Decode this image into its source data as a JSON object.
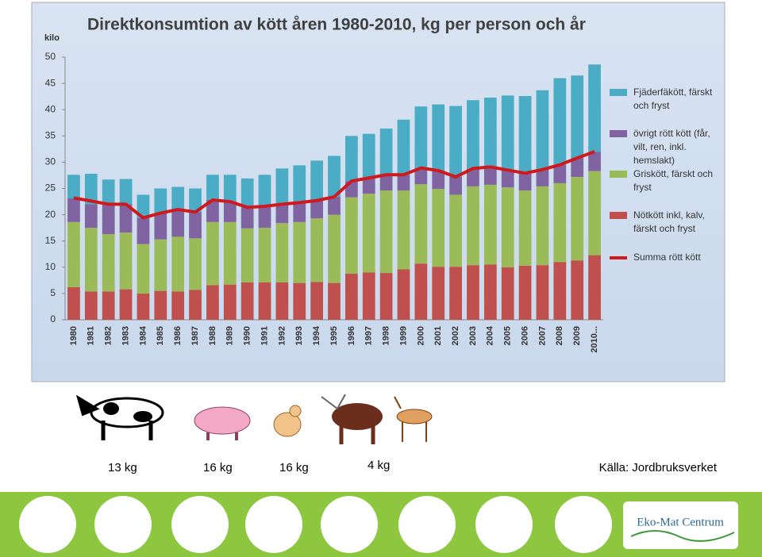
{
  "chart_data": {
    "type": "bar",
    "title": "Direktkonsumtion av kött åren 1980-2010, kg per person och år",
    "ylabel": "kilo",
    "categories": [
      "1980",
      "1981",
      "1982",
      "1983",
      "1984",
      "1985",
      "1986",
      "1987",
      "1988",
      "1989",
      "1990",
      "1991",
      "1992",
      "1993",
      "1994",
      "1995",
      "1996",
      "1997",
      "1998",
      "1999",
      "2000",
      "2001",
      "2002",
      "2003",
      "2004",
      "2005",
      "2006",
      "2007",
      "2008",
      "2009",
      "2010..."
    ],
    "ylim": [
      0,
      50
    ],
    "yticks": [
      0,
      5,
      10,
      15,
      20,
      25,
      30,
      35,
      40,
      45,
      50
    ],
    "series": [
      {
        "name": "Nötkött inkl, kalv, färskt och fryst",
        "color": "#c0504d",
        "values": [
          6.2,
          5.4,
          5.4,
          5.8,
          5.0,
          5.5,
          5.4,
          5.7,
          6.6,
          6.7,
          7.1,
          7.1,
          7.1,
          7.0,
          7.2,
          7.0,
          8.8,
          9.0,
          8.9,
          9.6,
          10.7,
          10.1,
          10.1,
          10.4,
          10.5,
          10.0,
          10.3,
          10.4,
          11.0,
          11.3,
          12.3
        ]
      },
      {
        "name": "Griskött, färskt och fryst",
        "color": "#9bbb59",
        "values": [
          12.4,
          12.1,
          10.9,
          10.8,
          9.4,
          9.8,
          10.4,
          9.8,
          12.0,
          11.9,
          10.3,
          10.4,
          11.3,
          11.6,
          12.1,
          13.0,
          14.5,
          15.0,
          15.7,
          15.0,
          15.1,
          14.8,
          13.7,
          15.0,
          15.2,
          15.2,
          14.3,
          15.0,
          15.0,
          15.9,
          16.0
        ]
      },
      {
        "name": "övrigt rött kött (får, vilt, ren, inkl. hemslakt)",
        "color": "#8064a2",
        "values": [
          4.5,
          4.5,
          5.7,
          5.4,
          5.0,
          5.0,
          5.2,
          5.0,
          4.2,
          3.9,
          4.0,
          4.1,
          3.6,
          3.7,
          3.4,
          3.4,
          3.1,
          3.0,
          3.0,
          3.0,
          3.1,
          3.5,
          3.4,
          3.4,
          3.4,
          3.3,
          3.3,
          3.2,
          3.5,
          3.6,
          3.7
        ]
      },
      {
        "name": "Fjäderfäkött, färskt och fryst",
        "color": "#4bacc6",
        "values": [
          4.5,
          5.8,
          4.7,
          4.8,
          4.4,
          4.7,
          4.3,
          4.5,
          4.8,
          5.1,
          5.5,
          6.0,
          6.8,
          7.1,
          7.6,
          7.8,
          8.6,
          8.4,
          8.8,
          10.5,
          11.7,
          12.6,
          13.5,
          13.0,
          13.2,
          14.2,
          14.7,
          15.1,
          16.5,
          15.7,
          16.6
        ]
      },
      {
        "name": "Summa rött kött",
        "type": "line",
        "color": "#d0191c",
        "values": [
          23.2,
          22.6,
          22,
          22,
          19.4,
          20.3,
          21,
          20.5,
          22.8,
          22.5,
          21.4,
          21.6,
          22,
          22.3,
          22.7,
          23.4,
          26.4,
          27,
          27.6,
          27.6,
          28.9,
          28.4,
          27.2,
          28.8,
          29.1,
          28.5,
          27.9,
          28.6,
          29.5,
          30.8,
          32
        ]
      }
    ]
  },
  "amounts": [
    "13 kg",
    "16 kg",
    "16 kg",
    "4 kg"
  ],
  "source": "Källa: Jordbruksverket",
  "logo": "Eko-Mat Centrum"
}
